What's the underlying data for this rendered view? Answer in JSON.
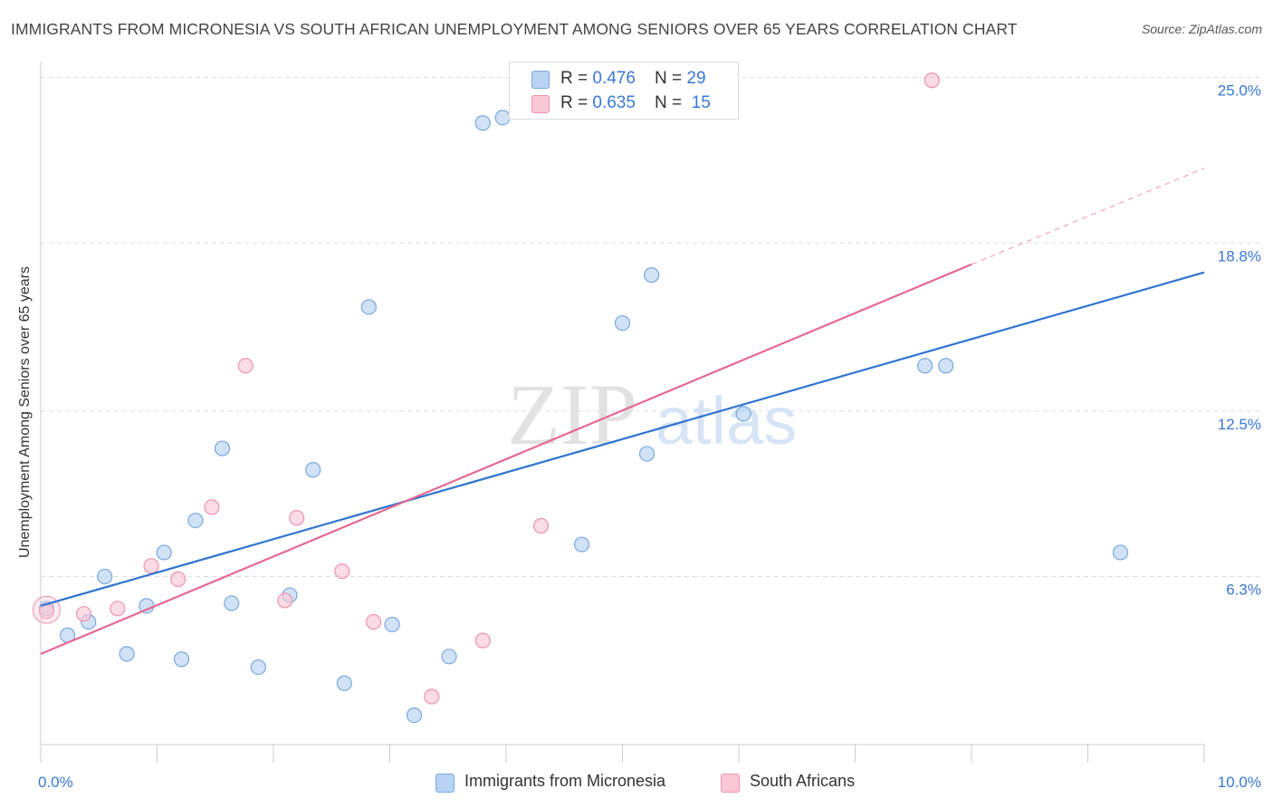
{
  "title": "IMMIGRANTS FROM MICRONESIA VS SOUTH AFRICAN UNEMPLOYMENT AMONG SENIORS OVER 65 YEARS CORRELATION CHART",
  "source": "Source: ZipAtlas.com",
  "watermark": {
    "zip": "ZIP",
    "atlas": "atlas"
  },
  "legend": {
    "rows": [
      {
        "r_label": "R = ",
        "r_value": "0.476",
        "n_label": "N = ",
        "n_value": "29",
        "color": "#a8c8f0"
      },
      {
        "r_label": "R = ",
        "r_value": "0.635",
        "n_label": "N = ",
        "n_value": "15",
        "color": "#f7b6c8"
      }
    ]
  },
  "colors": {
    "blue_fill": "#b9d3f3",
    "blue_stroke": "#7aa8e0",
    "blue_line": "#2f74d0",
    "pink_fill": "#f9c7d5",
    "pink_stroke": "#ee93ae",
    "pink_line": "#e4698f",
    "tick_label": "#3a78d4",
    "grid": "#dddddd"
  },
  "chart_data": {
    "type": "scatter",
    "title": "IMMIGRANTS FROM MICRONESIA VS SOUTH AFRICAN UNEMPLOYMENT AMONG SENIORS OVER 65 YEARS CORRELATION CHART",
    "xlabel": "",
    "ylabel": "Unemployment Among Seniors over 65 years",
    "xlim": [
      0,
      10
    ],
    "ylim": [
      0,
      25.6
    ],
    "x_tick_labels": [
      {
        "value": 0,
        "label": "0.0%"
      },
      {
        "value": 10,
        "label": "10.0%"
      }
    ],
    "y_tick_labels": [
      {
        "value": 6.3,
        "label": "6.3%"
      },
      {
        "value": 12.5,
        "label": "12.5%"
      },
      {
        "value": 18.8,
        "label": "18.8%"
      },
      {
        "value": 25.0,
        "label": "25.0%"
      }
    ],
    "grid": true,
    "legend_position": "top-center",
    "series": [
      {
        "name": "Immigrants from Micronesia",
        "color": "#b9d3f3",
        "points": [
          [
            0.05,
            5.1
          ],
          [
            0.23,
            4.1
          ],
          [
            0.41,
            4.6
          ],
          [
            0.55,
            6.3
          ],
          [
            0.74,
            3.4
          ],
          [
            0.91,
            5.2
          ],
          [
            1.06,
            7.2
          ],
          [
            1.21,
            3.2
          ],
          [
            1.33,
            8.4
          ],
          [
            1.56,
            11.1
          ],
          [
            1.64,
            5.3
          ],
          [
            1.87,
            2.9
          ],
          [
            2.14,
            5.6
          ],
          [
            2.34,
            10.3
          ],
          [
            2.61,
            2.3
          ],
          [
            2.82,
            16.4
          ],
          [
            3.02,
            4.5
          ],
          [
            3.21,
            1.1
          ],
          [
            3.51,
            3.3
          ],
          [
            3.8,
            23.3
          ],
          [
            3.97,
            23.5
          ],
          [
            4.65,
            7.5
          ],
          [
            5.0,
            15.8
          ],
          [
            5.21,
            10.9
          ],
          [
            5.25,
            17.6
          ],
          [
            6.04,
            12.4
          ],
          [
            7.6,
            14.2
          ],
          [
            7.78,
            14.2
          ],
          [
            9.28,
            7.2
          ]
        ],
        "trend": {
          "x0": 0,
          "y0": 5.2,
          "x1": 10,
          "y1": 17.7
        }
      },
      {
        "name": "South Africans",
        "color": "#f9c7d5",
        "points": [
          [
            0.05,
            5.0
          ],
          [
            0.37,
            4.9
          ],
          [
            0.66,
            5.1
          ],
          [
            0.95,
            6.7
          ],
          [
            1.18,
            6.2
          ],
          [
            1.47,
            8.9
          ],
          [
            1.76,
            14.2
          ],
          [
            2.1,
            5.4
          ],
          [
            2.2,
            8.5
          ],
          [
            2.59,
            6.5
          ],
          [
            2.86,
            4.6
          ],
          [
            3.36,
            1.8
          ],
          [
            3.8,
            3.9
          ],
          [
            4.3,
            8.2
          ],
          [
            7.66,
            24.9
          ]
        ],
        "trend": {
          "x0": 0,
          "y0": 3.4,
          "x1": 8.0,
          "y1": 18.0,
          "dash_x1": 10,
          "dash_y1": 21.6
        }
      }
    ]
  }
}
